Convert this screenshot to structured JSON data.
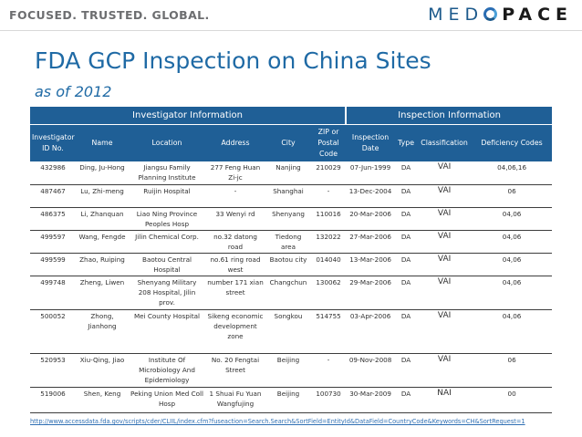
{
  "header": {
    "tagline": "FOCUSED. TRUSTED. GLOBAL.",
    "logo_text_a": "MED",
    "logo_text_b": "PACE"
  },
  "title": "FDA GCP Inspection on China Sites",
  "subtitle": "as of 2012",
  "table": {
    "group_investigator": "Investigator Information",
    "group_inspection": "Inspection Information",
    "columns": [
      "Investigator ID No.",
      "Name",
      "Location",
      "Address",
      "City",
      "ZIP or Postal Code",
      "Inspection Date",
      "Type",
      "Classification",
      "Deficiency Codes"
    ],
    "rows": [
      [
        "432986",
        "Ding, Ju-Hong",
        "Jiangsu Family Planning Institute",
        "277 Feng Huan Zi-jc",
        "Nanjing",
        "210029",
        "07-Jun-1999",
        "DA",
        "VAI",
        "04,06,16"
      ],
      [
        "487467",
        "Lu, Zhi-meng",
        "Ruijin Hospital",
        "-",
        "Shanghai",
        "-",
        "13-Dec-2004",
        "DA",
        "VAI",
        "06"
      ],
      [
        "486375",
        "Li, Zhanquan",
        "Liao Ning Province Peoples Hosp",
        "33 Wenyi rd",
        "Shenyang",
        "110016",
        "20-Mar-2006",
        "DA",
        "VAI",
        "04,06"
      ],
      [
        "499597",
        "Wang, Fengde",
        "Jilin Chemical Corp.",
        "no.32 datong road",
        "Tiedong area",
        "132022",
        "27-Mar-2006",
        "DA",
        "VAI",
        "04,06"
      ],
      [
        "499599",
        "Zhao, Ruiping",
        "Baotou Central Hospital",
        "no.61 ring road west",
        "Baotou city",
        "014040",
        "13-Mar-2006",
        "DA",
        "VAI",
        "04,06"
      ],
      [
        "499748",
        "Zheng, Liwen",
        "Shenyang Military 208 Hospital, Jilin prov.",
        "number 171 xian street",
        "Changchun",
        "130062",
        "29-Mar-2006",
        "DA",
        "VAI",
        "04,06"
      ],
      [
        "500052",
        "Zhong, Jianhong",
        "Mei County Hospital",
        "Sikeng economic development zone",
        "Songkou",
        "514755",
        "03-Apr-2006",
        "DA",
        "VAI",
        "04,06"
      ],
      [
        "520953",
        "Xiu-Qing, Jiao",
        "Institute Of Microbiology And Epidemiology",
        "No. 20 Fengtai Street",
        "Beijing",
        "-",
        "09-Nov-2008",
        "DA",
        "VAI",
        "06"
      ],
      [
        "519006",
        "Shen, Keng",
        "Peking Union Med Coll Hosp",
        "1 Shuai Fu Yuan Wangfujing",
        "Beijing",
        "100730",
        "30-Mar-2009",
        "DA",
        "NAI",
        "00"
      ]
    ]
  },
  "source_link": "http://www.accessdata.fda.gov/scripts/cder/CLIIL/index.cfm?fuseaction=Search.Search&SortField=EntityId&DataField=CountryCode&Keywords=CH&SortRequest=1",
  "colors": {
    "brand_blue": "#1f6aa5",
    "header_blue": "#1f5f96"
  }
}
